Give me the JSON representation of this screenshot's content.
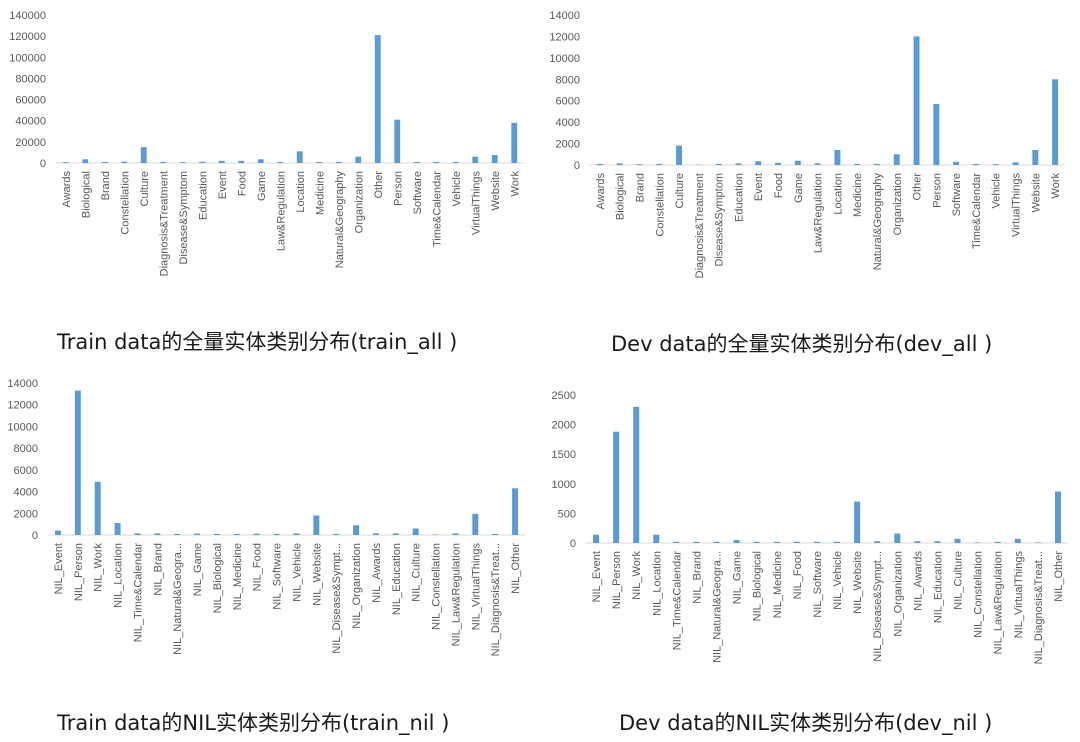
{
  "captions": {
    "c0": "Train data的全量实体类别分布(train_all )",
    "c1": "Dev data的全量实体类别分布(dev_all )",
    "c2": "Train data的NIL实体类别分布(train_nil )",
    "c3": "Dev data的NIL实体类别分布(dev_nil )"
  },
  "colors": {
    "bar": "#5b9bd5",
    "tick_text": "#595959",
    "axis": "#d9d9d9"
  },
  "chart_data": [
    {
      "type": "bar",
      "title": "Train data的全量实体类别分布(train_all )",
      "xlabel": "",
      "ylabel": "",
      "ylim": [
        0,
        140000
      ],
      "yticks": [
        "0",
        "20000",
        "40000",
        "60000",
        "80000",
        "100000",
        "120000",
        "140000"
      ],
      "categories": [
        "Awards",
        "Biological",
        "Brand",
        "Constellation",
        "Culture",
        "Diagnosis&Treatment",
        "Disease&Symptom",
        "Education",
        "Event",
        "Food",
        "Game",
        "Law&Regulation",
        "Location",
        "Medicine",
        "Natural&Geography",
        "Organization",
        "Other",
        "Person",
        "Software",
        "Time&Calendar",
        "Vehicle",
        "VirtualThings",
        "Website",
        "Work"
      ],
      "values": [
        800,
        3500,
        1000,
        1200,
        15000,
        1000,
        800,
        1200,
        2000,
        2000,
        3500,
        1000,
        11000,
        1000,
        1000,
        6000,
        121000,
        41000,
        1000,
        1000,
        1000,
        6000,
        7500,
        38000
      ]
    },
    {
      "type": "bar",
      "title": "Dev data的全量实体类别分布(dev_all )",
      "xlabel": "",
      "ylabel": "",
      "ylim": [
        0,
        14000
      ],
      "yticks": [
        "0",
        "2000",
        "4000",
        "6000",
        "8000",
        "10000",
        "12000",
        "14000"
      ],
      "categories": [
        "Awards",
        "Biological",
        "Brand",
        "Constellation",
        "Culture",
        "Diagnosis&Treatment",
        "Disease&Symptom",
        "Education",
        "Event",
        "Food",
        "Game",
        "Law&Regulation",
        "Location",
        "Medicine",
        "Natural&Geography",
        "Organization",
        "Other",
        "Person",
        "Software",
        "Time&Calendar",
        "Vehicle",
        "VirtualThings",
        "Website",
        "Work"
      ],
      "values": [
        100,
        150,
        80,
        100,
        1800,
        30,
        100,
        150,
        350,
        200,
        400,
        150,
        1400,
        100,
        100,
        1000,
        12000,
        5700,
        300,
        100,
        80,
        250,
        1400,
        8000
      ]
    },
    {
      "type": "bar",
      "title": "Train data的NIL实体类别分布(train_nil )",
      "xlabel": "",
      "ylabel": "",
      "ylim": [
        0,
        14000
      ],
      "yticks": [
        "0",
        "2000",
        "4000",
        "6000",
        "8000",
        "10000",
        "12000",
        "14000"
      ],
      "categories": [
        "NIL_Event",
        "NIL_Person",
        "NIL_Work",
        "NIL_Location",
        "NIL_Time&Calendar",
        "NIL_Brand",
        "NIL_Natural&Geogra...",
        "NIL_Game",
        "NIL_Biological",
        "NIL_Medicine",
        "NIL_Food",
        "NIL_Software",
        "NIL_Vehicle",
        "NIL_Website",
        "NIL_Disease&Sympt...",
        "NIL_Organization",
        "NIL_Awards",
        "NIL_Education",
        "NIL_Culture",
        "NIL_Constellation",
        "NIL_Law&Regulation",
        "NIL_VirtualThings",
        "NIL_Diagnosis&Treat...",
        "NIL_Other"
      ],
      "values": [
        400,
        13300,
        4900,
        1100,
        150,
        150,
        100,
        120,
        100,
        100,
        120,
        100,
        150,
        1800,
        100,
        900,
        150,
        150,
        600,
        50,
        150,
        1950,
        100,
        4300
      ]
    },
    {
      "type": "bar",
      "title": "Dev data的NIL实体类别分布(dev_nil )",
      "xlabel": "",
      "ylabel": "",
      "ylim": [
        0,
        2500
      ],
      "yticks": [
        "0",
        "500",
        "1000",
        "1500",
        "2000",
        "2500"
      ],
      "categories": [
        "NIL_Event",
        "NIL_Person",
        "NIL_Work",
        "NIL_Location",
        "NIL_Time&Calendar",
        "NIL_Brand",
        "NIL_Natural&Geogra...",
        "NIL_Game",
        "NIL_Biological",
        "NIL_Medicine",
        "NIL_Food",
        "NIL_Software",
        "NIL_Vehicle",
        "NIL_Website",
        "NIL_Disease&Sympt...",
        "NIL_Organization",
        "NIL_Awards",
        "NIL_Education",
        "NIL_Culture",
        "NIL_Constellation",
        "NIL_Law&Regulation",
        "NIL_VirtualThings",
        "NIL_Diagnosis&Treat...",
        "NIL_Other"
      ],
      "values": [
        140,
        1880,
        2300,
        140,
        20,
        20,
        20,
        50,
        20,
        20,
        20,
        20,
        20,
        700,
        30,
        160,
        30,
        30,
        70,
        10,
        20,
        70,
        10,
        870
      ]
    }
  ]
}
